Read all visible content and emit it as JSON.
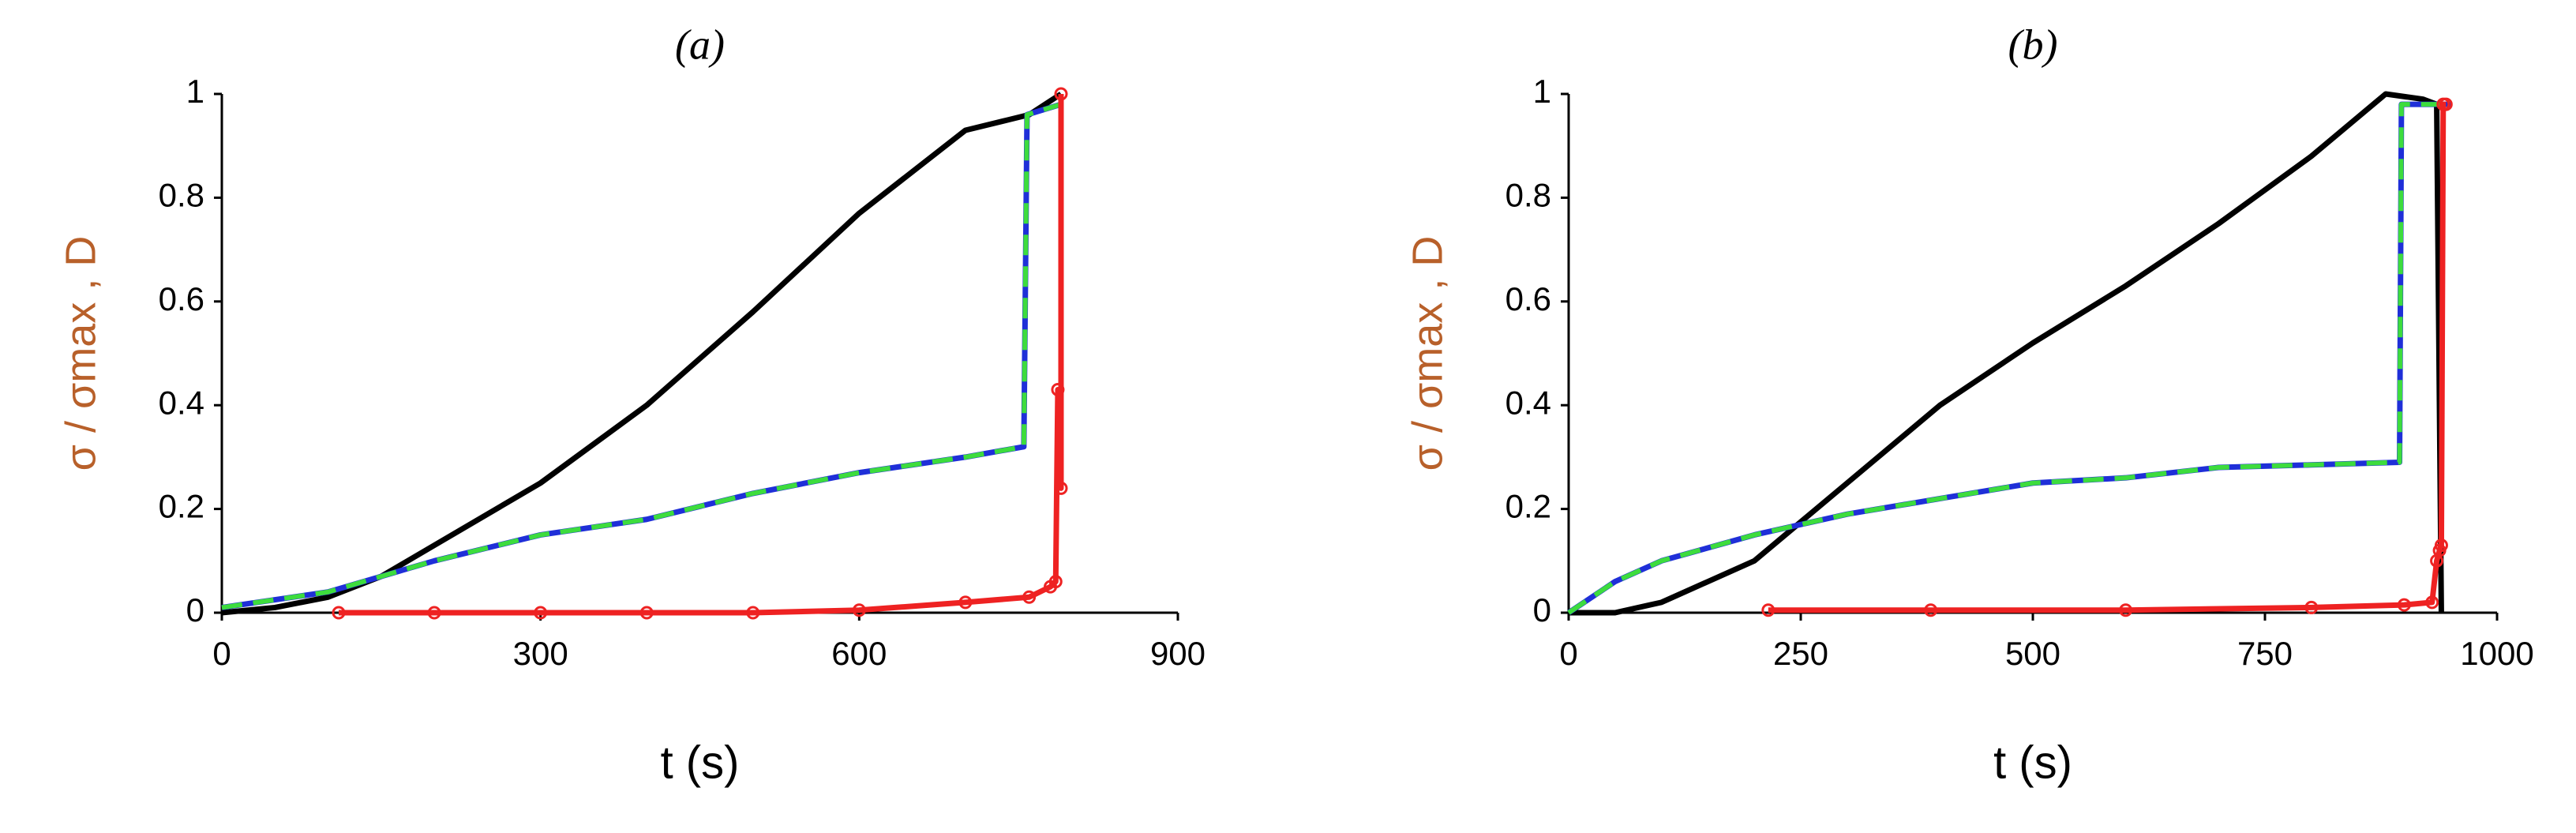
{
  "chart_data": [
    {
      "type": "line",
      "title": "(a)",
      "x_label": "t (s)",
      "y_label": "σ / σmax , D",
      "xlim": [
        0,
        900
      ],
      "xticks": [
        0,
        300,
        600,
        900
      ],
      "ylim": [
        0,
        1
      ],
      "yticks": [
        0,
        0.2,
        0.4,
        0.6,
        0.8,
        1
      ],
      "series": [
        {
          "color": "#000000",
          "x": [
            0,
            50,
            100,
            150,
            200,
            300,
            400,
            500,
            600,
            700,
            740,
            760,
            790
          ],
          "values": [
            0,
            0.01,
            0.03,
            0.07,
            0.13,
            0.25,
            0.4,
            0.58,
            0.77,
            0.93,
            0.95,
            0.96,
            1.0
          ]
        },
        {
          "color": "#1f2fd8",
          "x": [
            0,
            100,
            200,
            300,
            400,
            500,
            600,
            700,
            755,
            758,
            790
          ],
          "values": [
            0.01,
            0.04,
            0.1,
            0.15,
            0.18,
            0.23,
            0.27,
            0.3,
            0.32,
            0.96,
            0.98
          ]
        },
        {
          "color": "#3ddc3d",
          "dashed": true,
          "x": [
            0,
            100,
            200,
            300,
            400,
            500,
            600,
            700,
            755,
            758,
            790
          ],
          "values": [
            0.01,
            0.04,
            0.1,
            0.15,
            0.18,
            0.23,
            0.27,
            0.3,
            0.32,
            0.96,
            0.98
          ]
        },
        {
          "color": "#ee2222",
          "markers": true,
          "x": [
            110,
            200,
            300,
            400,
            500,
            600,
            700,
            760,
            780,
            785,
            787,
            790,
            790
          ],
          "values": [
            0,
            0,
            0,
            0,
            0,
            0.005,
            0.02,
            0.03,
            0.05,
            0.06,
            0.43,
            0.24,
            1.0
          ]
        }
      ]
    },
    {
      "type": "line",
      "title": "(b)",
      "x_label": "t (s)",
      "y_label": "σ / σmax , D",
      "xlim": [
        0,
        1000
      ],
      "xticks": [
        0,
        250,
        500,
        750,
        1000
      ],
      "ylim": [
        0,
        1
      ],
      "yticks": [
        0,
        0.2,
        0.4,
        0.6,
        0.8,
        1
      ],
      "series": [
        {
          "color": "#000000",
          "x": [
            0,
            50,
            100,
            200,
            300,
            400,
            500,
            600,
            700,
            800,
            880,
            920,
            935,
            940
          ],
          "values": [
            0,
            0,
            0.02,
            0.1,
            0.25,
            0.4,
            0.52,
            0.63,
            0.75,
            0.88,
            1.0,
            0.99,
            0.98,
            0
          ]
        },
        {
          "color": "#1f2fd8",
          "x": [
            0,
            50,
            100,
            200,
            300,
            400,
            500,
            600,
            700,
            800,
            895,
            897,
            950
          ],
          "values": [
            0,
            0.06,
            0.1,
            0.15,
            0.19,
            0.22,
            0.25,
            0.26,
            0.28,
            0.285,
            0.29,
            0.98,
            0.98
          ]
        },
        {
          "color": "#3ddc3d",
          "dashed": true,
          "x": [
            0,
            50,
            100,
            200,
            300,
            400,
            500,
            600,
            700,
            800,
            895,
            897,
            950
          ],
          "values": [
            0,
            0.06,
            0.1,
            0.15,
            0.19,
            0.22,
            0.25,
            0.26,
            0.28,
            0.285,
            0.29,
            0.98,
            0.98
          ]
        },
        {
          "color": "#ee2222",
          "markers": true,
          "x": [
            215,
            390,
            600,
            800,
            900,
            930,
            935,
            938,
            940,
            942,
            945
          ],
          "values": [
            0.005,
            0.005,
            0.005,
            0.01,
            0.015,
            0.02,
            0.1,
            0.12,
            0.13,
            0.98,
            0.98
          ]
        }
      ]
    }
  ]
}
